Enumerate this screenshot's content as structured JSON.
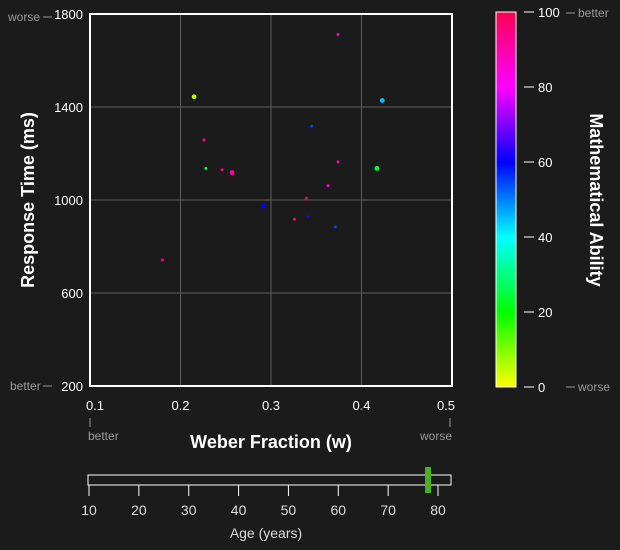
{
  "chart_data": {
    "type": "scatter",
    "xlabel": "Weber Fraction (w)",
    "ylabel": "Response Time (ms)",
    "colorbar_label": "Mathematical Ability",
    "xlim": [
      0.1,
      0.5
    ],
    "ylim": [
      200,
      1800
    ],
    "x_ticks": [
      "0.1",
      "0.2",
      "0.3",
      "0.4",
      "0.5"
    ],
    "y_ticks": [
      "200",
      "600",
      "1000",
      "1400",
      "1800"
    ],
    "colorbar_ticks": [
      "0",
      "20",
      "40",
      "60",
      "80",
      "100"
    ],
    "colorbar_range": [
      0,
      100
    ],
    "grid": true,
    "colormap": [
      "#ffff00",
      "#00ff00",
      "#00ffff",
      "#0000ff",
      "#ff00ff",
      "#ff0055"
    ],
    "hints": {
      "x_left": "better",
      "x_right": "worse",
      "y_top": "worse",
      "y_bottom": "better",
      "color_top": "better",
      "color_bottom": "worse"
    },
    "points": [
      {
        "x": 0.374,
        "y": 1712,
        "ability": 86,
        "big": false
      },
      {
        "x": 0.215,
        "y": 1444,
        "ability": 5,
        "big": true
      },
      {
        "x": 0.423,
        "y": 1428,
        "ability": 45,
        "big": true
      },
      {
        "x": 0.345,
        "y": 1318,
        "ability": 55,
        "big": false
      },
      {
        "x": 0.226,
        "y": 1258,
        "ability": 90,
        "big": false
      },
      {
        "x": 0.374,
        "y": 1164,
        "ability": 88,
        "big": false
      },
      {
        "x": 0.228,
        "y": 1136,
        "ability": 25,
        "big": false
      },
      {
        "x": 0.246,
        "y": 1130,
        "ability": 96,
        "big": false
      },
      {
        "x": 0.257,
        "y": 1118,
        "ability": 90,
        "big": true
      },
      {
        "x": 0.417,
        "y": 1136,
        "ability": 25,
        "big": true
      },
      {
        "x": 0.363,
        "y": 1062,
        "ability": 85,
        "big": false
      },
      {
        "x": 0.339,
        "y": 1008,
        "ability": 97,
        "big": false
      },
      {
        "x": 0.292,
        "y": 974,
        "ability": 60,
        "big": true
      },
      {
        "x": 0.326,
        "y": 918,
        "ability": 98,
        "big": false
      },
      {
        "x": 0.341,
        "y": 928,
        "ability": 62,
        "big": false
      },
      {
        "x": 0.371,
        "y": 884,
        "ability": 55,
        "big": false
      },
      {
        "x": 0.18,
        "y": 742,
        "ability": 92,
        "big": false
      }
    ]
  },
  "age_slider": {
    "label": "Age (years)",
    "min": 10,
    "max": 81,
    "ticks": [
      "10",
      "20",
      "30",
      "40",
      "50",
      "60",
      "70",
      "80"
    ],
    "value": 78,
    "handle_color": "#4caf1f"
  }
}
